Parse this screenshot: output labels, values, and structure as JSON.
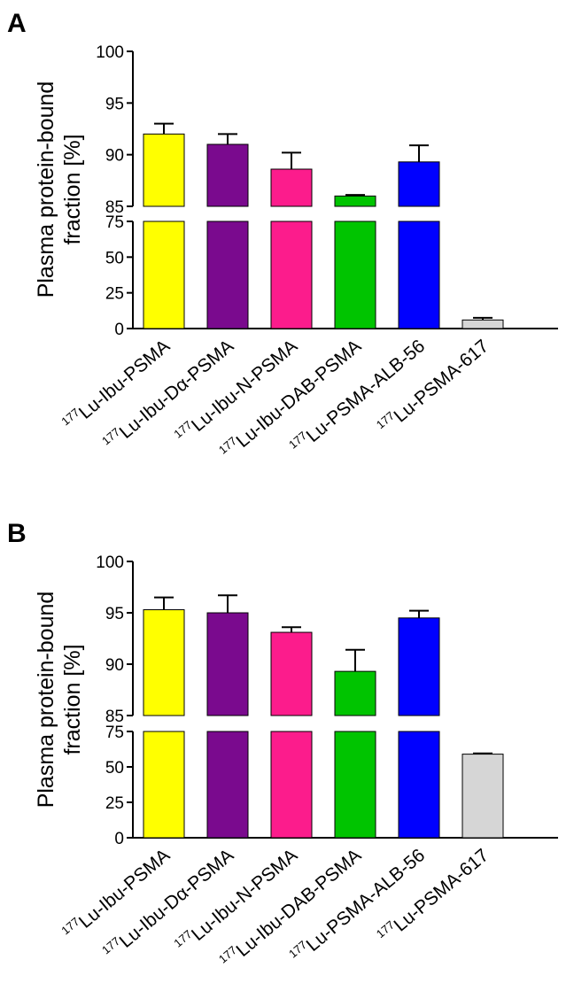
{
  "chart_data": [
    {
      "type": "bar",
      "panel_label": "A",
      "ylabel_line1": "Plasma protein-bound",
      "ylabel_line2": "fraction [%]",
      "axis_break": true,
      "upper_ylim": [
        85,
        100
      ],
      "upper_ticks": [
        "85",
        "90",
        "95",
        "100"
      ],
      "lower_ylim": [
        0,
        75
      ],
      "lower_ticks": [
        "0",
        "25",
        "50",
        "75"
      ],
      "categories": [
        {
          "sup": "177",
          "label": "Lu-Ibu-PSMA"
        },
        {
          "sup": "177",
          "label": "Lu-Ibu-Dα-PSMA"
        },
        {
          "sup": "177",
          "label": "Lu-Ibu-N-PSMA"
        },
        {
          "sup": "177",
          "label": "Lu-Ibu-DAB-PSMA"
        },
        {
          "sup": "177",
          "label": "Lu-PSMA-ALB-56"
        },
        {
          "sup": "177",
          "label": "Lu-PSMA-617"
        }
      ],
      "values": [
        92.0,
        91.0,
        88.6,
        86.0,
        89.3,
        6.0
      ],
      "errors": [
        1.0,
        1.0,
        1.6,
        0.1,
        1.6,
        1.5
      ],
      "colors": [
        "#ffff00",
        "#7a0a8e",
        "#fc1c8c",
        "#00c400",
        "#0000ff",
        "#d6d6d6"
      ]
    },
    {
      "type": "bar",
      "panel_label": "B",
      "ylabel_line1": "Plasma protein-bound",
      "ylabel_line2": "fraction [%]",
      "axis_break": true,
      "upper_ylim": [
        85,
        100
      ],
      "upper_ticks": [
        "85",
        "90",
        "95",
        "100"
      ],
      "lower_ylim": [
        0,
        75
      ],
      "lower_ticks": [
        "0",
        "25",
        "50",
        "75"
      ],
      "categories": [
        {
          "sup": "177",
          "label": "Lu-Ibu-PSMA"
        },
        {
          "sup": "177",
          "label": "Lu-Ibu-Dα-PSMA"
        },
        {
          "sup": "177",
          "label": "Lu-Ibu-N-PSMA"
        },
        {
          "sup": "177",
          "label": "Lu-Ibu-DAB-PSMA"
        },
        {
          "sup": "177",
          "label": "Lu-PSMA-ALB-56"
        },
        {
          "sup": "177",
          "label": "Lu-PSMA-617"
        }
      ],
      "values": [
        95.3,
        95.0,
        93.1,
        89.3,
        94.5,
        59.0
      ],
      "errors": [
        1.2,
        1.7,
        0.5,
        2.1,
        0.7,
        0.5
      ],
      "colors": [
        "#ffff00",
        "#7a0a8e",
        "#fc1c8c",
        "#00c400",
        "#0000ff",
        "#d6d6d6"
      ]
    }
  ]
}
